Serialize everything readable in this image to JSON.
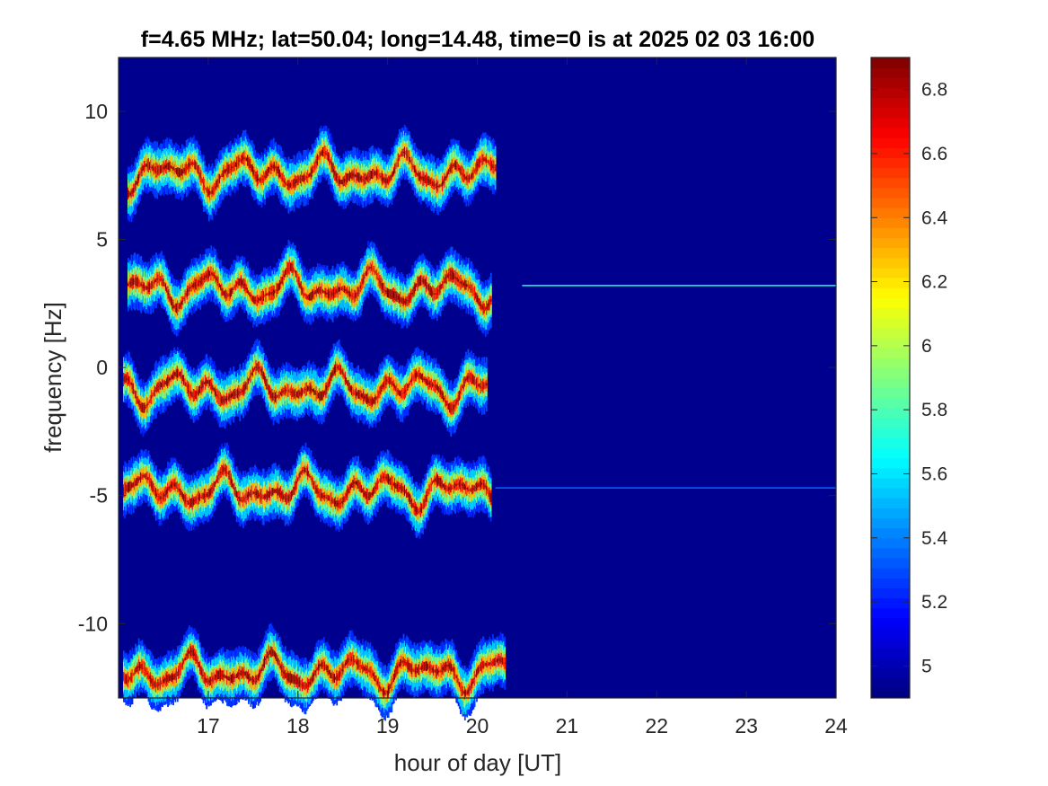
{
  "chart_data": {
    "type": "heatmap",
    "title": "f=4.65 MHz;  lat=50.04; long=14.48, time=0 is at 2025 02 03 16:00",
    "xlabel": "hour of day [UT]",
    "ylabel": "frequency [Hz]",
    "xlim": [
      16.0,
      24.0
    ],
    "ylim": [
      -12.9,
      12.1
    ],
    "xticks": [
      17,
      18,
      19,
      20,
      21,
      22,
      23,
      24
    ],
    "xtick_labels": [
      "17",
      "18",
      "19",
      "20",
      "21",
      "22",
      "23",
      "24"
    ],
    "yticks": [
      10,
      5,
      0,
      -5,
      -10
    ],
    "ytick_labels": [
      "10",
      "5",
      "0",
      "-5",
      "-10"
    ],
    "colorbar": {
      "colormap": "jet",
      "clim": [
        4.9,
        6.9
      ],
      "ticks": [
        6.8,
        6.6,
        6.4,
        6.2,
        6.0,
        5.8,
        5.6,
        5.4,
        5.2,
        5.0
      ],
      "tick_labels": [
        "6.8",
        "6.6",
        "6.4",
        "6.2",
        "6",
        "5.8",
        "5.6",
        "5.4",
        "5.2",
        "5"
      ]
    },
    "background_value": 4.95,
    "signal_bands": [
      {
        "center_freq_hz": 7.6,
        "start_hour": 16.1,
        "end_hour": 20.2,
        "peak_value": 6.85
      },
      {
        "center_freq_hz": 3.1,
        "start_hour": 16.1,
        "end_hour": 20.15,
        "peak_value": 6.85
      },
      {
        "center_freq_hz": -0.8,
        "start_hour": 16.05,
        "end_hour": 20.1,
        "peak_value": 6.85
      },
      {
        "center_freq_hz": -4.8,
        "start_hour": 16.05,
        "end_hour": 20.15,
        "peak_value": 6.85
      },
      {
        "center_freq_hz": -11.9,
        "start_hour": 16.05,
        "end_hour": 20.3,
        "peak_value": 6.85
      }
    ],
    "carrier_lines": [
      {
        "freq_hz": 3.2,
        "start_hour": 20.5,
        "end_hour": 24.0,
        "value": 5.7
      },
      {
        "freq_hz": -4.7,
        "start_hour": 20.2,
        "end_hour": 24.0,
        "value": 5.35
      }
    ],
    "grid": false
  }
}
